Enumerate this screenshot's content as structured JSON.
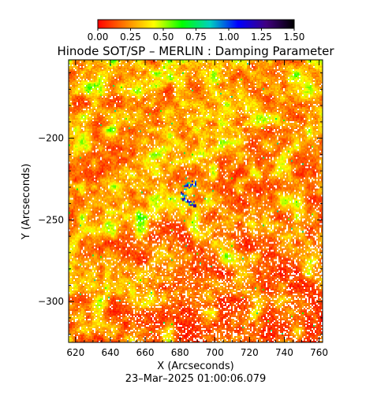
{
  "chart_data": {
    "type": "heatmap",
    "title": "Hinode SOT/SP – MERLIN : Damping Parameter",
    "xlabel": "X (Arcseconds)",
    "ylabel": "Y (Arcseconds)",
    "xlim": [
      616,
      762
    ],
    "ylim": [
      -325,
      -152
    ],
    "xticks": [
      620,
      640,
      660,
      680,
      700,
      720,
      740,
      760
    ],
    "yticks": [
      -200,
      -250,
      -300
    ],
    "colorbar": {
      "range": [
        0.0,
        1.5
      ],
      "tick_labels": [
        "0.00",
        "0.25",
        "0.50",
        "0.75",
        "1.00",
        "1.25",
        "1.50"
      ],
      "colormap": [
        "#ff0000",
        "#ff8000",
        "#ffff00",
        "#00ff00",
        "#00d0c0",
        "#0000ff",
        "#400080",
        "#000000"
      ]
    },
    "footer_date": "23–Mar–2025 01:00:06.079",
    "value_distribution_note_values": {
      "background_typical": 0.05,
      "bright_network_typical": 0.35,
      "central_feature_max": 1.3
    }
  }
}
